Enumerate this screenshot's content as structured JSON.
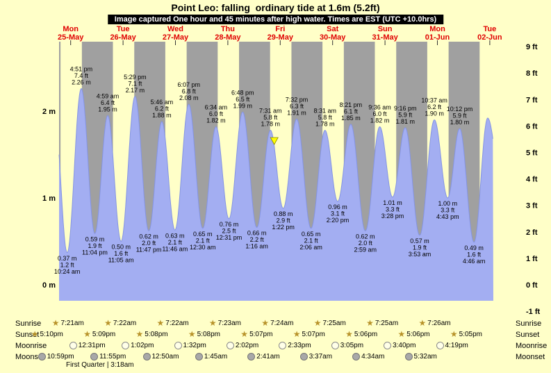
{
  "title": "Point Leo: falling  ordinary tide at 1.6m (5.2ft)",
  "banner": "Image captured One hour and 45 minutes after high water. Times are EST (UTC +10.0hrs)",
  "colors": {
    "page_bg": "#ffffc8",
    "night_band": "#a0a0a0",
    "day_band": "#ffffc8",
    "tide_fill": "#a3aef2",
    "tide_edge": "#8494e4",
    "day_label": "#e00000",
    "marker_fill": "#ffff00",
    "marker_edge": "#8a8a00"
  },
  "chart_data": {
    "type": "area",
    "unit_left": "m",
    "unit_right": "ft",
    "ylim_m": [
      -0.18,
      2.8
    ],
    "days": [
      {
        "weekday": "Mon",
        "date": "25-May"
      },
      {
        "weekday": "Tue",
        "date": "26-May"
      },
      {
        "weekday": "Wed",
        "date": "27-May"
      },
      {
        "weekday": "Thu",
        "date": "28-May"
      },
      {
        "weekday": "Fri",
        "date": "29-May"
      },
      {
        "weekday": "Sat",
        "date": "30-May"
      },
      {
        "weekday": "Sun",
        "date": "31-May"
      },
      {
        "weekday": "Mon",
        "date": "01-Jun"
      },
      {
        "weekday": "Tue",
        "date": "02-Jun"
      }
    ],
    "left_ticks": [
      {
        "label": "0 m",
        "m": 0
      },
      {
        "label": "1 m",
        "m": 1
      },
      {
        "label": "2 m",
        "m": 2
      }
    ],
    "right_ticks": [
      {
        "label": "9 ft",
        "ft": 9
      },
      {
        "label": "8 ft",
        "ft": 8
      },
      {
        "label": "7 ft",
        "ft": 7
      },
      {
        "label": "6 ft",
        "ft": 6
      },
      {
        "label": "5 ft",
        "ft": 5
      },
      {
        "label": "4 ft",
        "ft": 4
      },
      {
        "label": "3 ft",
        "ft": 3
      },
      {
        "label": "2 ft",
        "ft": 2
      },
      {
        "label": "1 ft",
        "ft": 1
      },
      {
        "label": "0 ft",
        "ft": 0
      },
      {
        "label": "-1 ft",
        "ft": -1
      }
    ],
    "extremes": [
      {
        "kind": "high",
        "t": 0.198,
        "h": 1.9,
        "lines": []
      },
      {
        "kind": "low",
        "t": 0.4333,
        "h": 0.37,
        "lines": [
          "0.37 m",
          "1.2 ft",
          "10:24 am"
        ]
      },
      {
        "kind": "high",
        "t": 0.702,
        "h": 2.26,
        "lines": [
          "4:51 pm",
          "7.4 ft",
          "2.26 m"
        ]
      },
      {
        "kind": "low",
        "t": 0.9611,
        "h": 0.59,
        "lines": [
          "0.59 m",
          "1.9 ft",
          "11:04 pm"
        ]
      },
      {
        "kind": "high",
        "t": 1.2076,
        "h": 1.95,
        "lines": [
          "4:59 am",
          "6.4 ft",
          "1.95 m"
        ]
      },
      {
        "kind": "low",
        "t": 1.4618,
        "h": 0.5,
        "lines": [
          "0.50 m",
          "1.6 ft",
          "11:05 am"
        ]
      },
      {
        "kind": "high",
        "t": 1.7285,
        "h": 2.17,
        "lines": [
          "5:29 pm",
          "7.1 ft",
          "2.17 m"
        ]
      },
      {
        "kind": "low",
        "t": 1.991,
        "h": 0.62,
        "lines": [
          "0.62 m",
          "2.0 ft",
          "11:47 pm"
        ]
      },
      {
        "kind": "high",
        "t": 2.2403,
        "h": 1.88,
        "lines": [
          "5:46 am",
          "6.2 ft",
          "1.88 m"
        ]
      },
      {
        "kind": "low",
        "t": 2.4903,
        "h": 0.63,
        "lines": [
          "0.63 m",
          "2.1 ft",
          "11:46 am"
        ]
      },
      {
        "kind": "high",
        "t": 2.7549,
        "h": 2.08,
        "lines": [
          "6:07 pm",
          "6.8 ft",
          "2.08 m"
        ]
      },
      {
        "kind": "low",
        "t": 3.0208,
        "h": 0.65,
        "lines": [
          "0.65 m",
          "2.1 ft",
          "12:30 am"
        ]
      },
      {
        "kind": "high",
        "t": 3.2736,
        "h": 1.82,
        "lines": [
          "6:34 am",
          "6.0 ft",
          "1.82 m"
        ]
      },
      {
        "kind": "low",
        "t": 3.5215,
        "h": 0.76,
        "lines": [
          "0.76 m",
          "2.5 ft",
          "12:31 pm"
        ]
      },
      {
        "kind": "high",
        "t": 3.7833,
        "h": 1.99,
        "lines": [
          "6:48 pm",
          "6.5 ft",
          "1.99 m"
        ]
      },
      {
        "kind": "low",
        "t": 4.0528,
        "h": 0.66,
        "lines": [
          "0.66 m",
          "2.2 ft",
          "1:16 am"
        ]
      },
      {
        "kind": "high",
        "t": 4.3132,
        "h": 1.78,
        "lines": [
          "7:31 am",
          "5.8 ft",
          "1.78 m"
        ]
      },
      {
        "kind": "low",
        "t": 4.5569,
        "h": 0.88,
        "lines": [
          "0.88 m",
          "2.9 ft",
          "1:22 pm"
        ]
      },
      {
        "kind": "high",
        "t": 4.8139,
        "h": 1.91,
        "lines": [
          "7:32 pm",
          "6.3 ft",
          "1.91 m"
        ]
      },
      {
        "kind": "low",
        "t": 5.0875,
        "h": 0.65,
        "lines": [
          "0.65 m",
          "2.1 ft",
          "2:06 am"
        ]
      },
      {
        "kind": "high",
        "t": 5.3549,
        "h": 1.78,
        "lines": [
          "8:31 am",
          "5.8 ft",
          "1.78 m"
        ]
      },
      {
        "kind": "low",
        "t": 5.5972,
        "h": 0.96,
        "lines": [
          "0.96 m",
          "3.1 ft",
          "2:20 pm"
        ]
      },
      {
        "kind": "high",
        "t": 5.8479,
        "h": 1.85,
        "lines": [
          "8:21 pm",
          "6.1 ft",
          "1.85 m"
        ]
      },
      {
        "kind": "low",
        "t": 6.1243,
        "h": 0.62,
        "lines": [
          "0.62 m",
          "2.0 ft",
          "2:59 am"
        ]
      },
      {
        "kind": "high",
        "t": 6.4,
        "h": 1.82,
        "lines": [
          "9:36 am",
          "6.0 ft",
          "1.82 m"
        ]
      },
      {
        "kind": "low",
        "t": 6.6444,
        "h": 1.01,
        "lines": [
          "1.01 m",
          "3.3 ft",
          "3:28 pm"
        ]
      },
      {
        "kind": "high",
        "t": 6.8861,
        "h": 1.81,
        "lines": [
          "9:16 pm",
          "5.9 ft",
          "1.81 m"
        ]
      },
      {
        "kind": "low",
        "t": 7.1618,
        "h": 0.57,
        "lines": [
          "0.57 m",
          "1.9 ft",
          "3:53 am"
        ]
      },
      {
        "kind": "high",
        "t": 7.4424,
        "h": 1.9,
        "lines": [
          "10:37 am",
          "6.2 ft",
          "1.90 m"
        ]
      },
      {
        "kind": "low",
        "t": 7.6965,
        "h": 1.0,
        "lines": [
          "1.00 m",
          "3.3 ft",
          "4:43 pm"
        ]
      },
      {
        "kind": "high",
        "t": 7.925,
        "h": 1.8,
        "lines": [
          "10:12 pm",
          "5.9 ft",
          "1.80 m"
        ]
      },
      {
        "kind": "low",
        "t": 8.1986,
        "h": 0.49,
        "lines": [
          "0.49 m",
          "1.6 ft",
          "4:46 am"
        ]
      },
      {
        "kind": "high",
        "t": 8.46,
        "h": 1.92,
        "lines": []
      },
      {
        "kind": "low",
        "t": 8.75,
        "h": 1.0,
        "lines": []
      }
    ],
    "marker": {
      "t": 4.3861,
      "h": 1.6
    }
  },
  "astro": {
    "rows": [
      {
        "id": "sunrise",
        "label": "Sunrise",
        "icon": "sun",
        "times": [
          "7:21am",
          "7:22am",
          "7:22am",
          "7:23am",
          "7:24am",
          "7:25am",
          "7:25am",
          "7:26am"
        ]
      },
      {
        "id": "sunset",
        "label": "Sunset",
        "icon": "sun",
        "times": [
          "5:10pm",
          "5:09pm",
          "5:08pm",
          "5:08pm",
          "5:07pm",
          "5:07pm",
          "5:06pm",
          "5:06pm",
          "5:05pm"
        ]
      },
      {
        "id": "moonrise",
        "label": "Moonrise",
        "icon": "moon-light",
        "times": [
          "12:31pm",
          "1:02pm",
          "1:32pm",
          "2:02pm",
          "2:33pm",
          "3:05pm",
          "3:40pm",
          "4:19pm"
        ]
      },
      {
        "id": "moonset",
        "label": "Moonset",
        "icon": "moon-dark",
        "times": [
          "10:59pm",
          "11:55pm",
          "12:50am",
          "1:45am",
          "2:41am",
          "3:37am",
          "4:34am",
          "5:32am"
        ]
      }
    ],
    "footnote": "First Quarter | 3:18am"
  }
}
